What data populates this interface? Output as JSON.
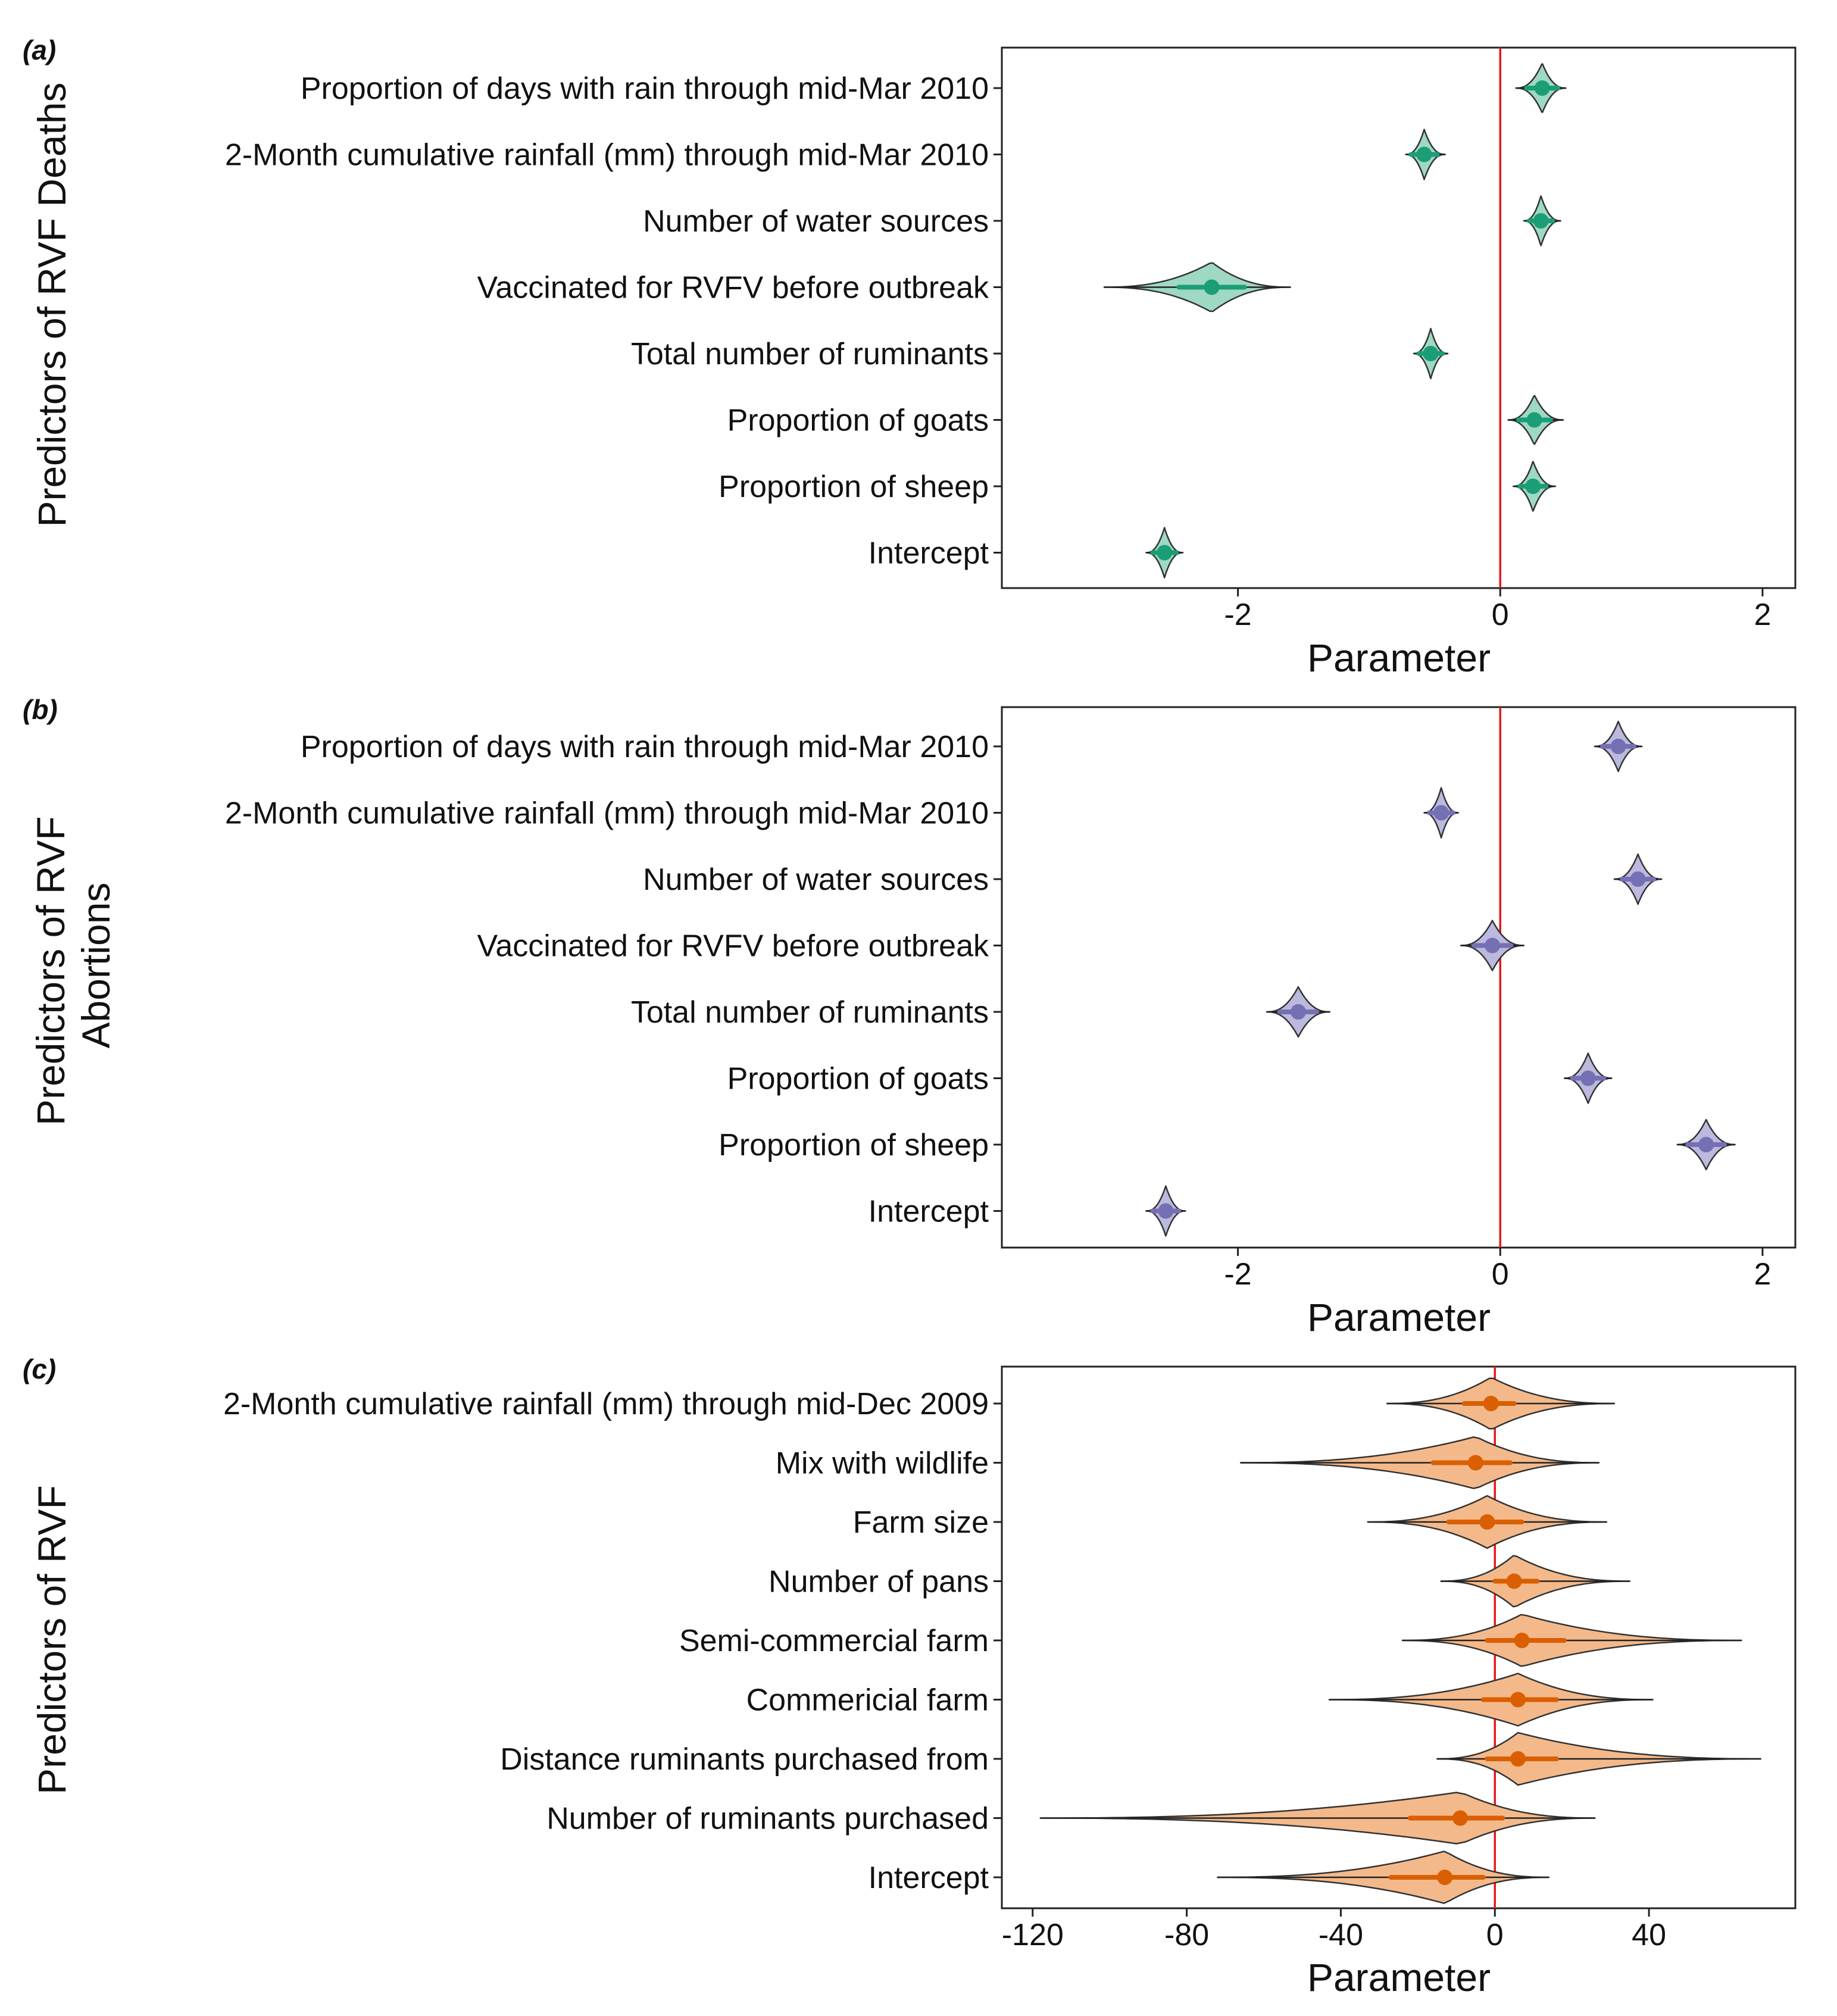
{
  "chart_data": [
    {
      "type": "violin",
      "panel": "(a)",
      "ylabel": "Predictors of RVF Deaths",
      "xlabel": "Parameter",
      "xlim": [
        -3.8,
        2.25
      ],
      "xticks": [
        -2,
        0,
        2
      ],
      "tick_labels": [
        "-2",
        "0",
        "2"
      ],
      "reference_line": 0,
      "fill": "#9fd8c3",
      "point_color": "#1b9e77",
      "categories": [
        "Proportion of days with rain through mid-Mar 2010",
        "2-Month cumulative rainfall (mm) through mid-Mar 2010",
        "Number of water sources",
        "Vaccinated for RVFV before outbreak",
        "Total number of ruminants",
        "Proportion of goats",
        "Proportion of sheep",
        "Intercept"
      ],
      "median": [
        0.32,
        -0.58,
        0.31,
        -2.2,
        -0.53,
        0.26,
        0.25,
        -2.56
      ],
      "ci_low": [
        0.2,
        -0.68,
        0.22,
        -2.45,
        -0.62,
        0.14,
        0.15,
        -2.65
      ],
      "ci_high": [
        0.44,
        -0.48,
        0.4,
        -1.95,
        -0.44,
        0.38,
        0.35,
        -2.47
      ],
      "min": [
        0.12,
        -0.72,
        0.18,
        -3.02,
        -0.66,
        0.06,
        0.1,
        -2.7
      ],
      "max": [
        0.5,
        -0.42,
        0.46,
        -1.6,
        -0.4,
        0.48,
        0.42,
        -2.42
      ]
    },
    {
      "type": "violin",
      "panel": "(b)",
      "ylabel": [
        "Predictors of RVF",
        "Abortions"
      ],
      "xlabel": "Parameter",
      "xlim": [
        -3.8,
        2.25
      ],
      "xticks": [
        -2,
        0,
        2
      ],
      "tick_labels": [
        "-2",
        "0",
        "2"
      ],
      "reference_line": 0,
      "fill": "#bcb9de",
      "point_color": "#7570b3",
      "categories": [
        "Proportion of days with rain through mid-Mar 2010",
        "2-Month cumulative rainfall (mm) through mid-Mar 2010",
        "Number of water sources",
        "Vaccinated for RVFV before outbreak",
        "Total number of ruminants",
        "Proportion of goats",
        "Proportion of sheep",
        "Intercept"
      ],
      "median": [
        0.9,
        -0.45,
        1.05,
        -0.06,
        -1.54,
        0.67,
        1.57,
        -2.55
      ],
      "ci_low": [
        0.78,
        -0.54,
        0.93,
        -0.2,
        -1.68,
        0.55,
        1.43,
        -2.65
      ],
      "ci_high": [
        1.02,
        -0.36,
        1.17,
        0.08,
        -1.4,
        0.79,
        1.71,
        -2.45
      ],
      "min": [
        0.72,
        -0.58,
        0.87,
        -0.3,
        -1.78,
        0.49,
        1.35,
        -2.7
      ],
      "max": [
        1.08,
        -0.32,
        1.23,
        0.18,
        -1.3,
        0.85,
        1.79,
        -2.4
      ]
    },
    {
      "type": "violin",
      "panel": "(c)",
      "ylabel": "Predictors of RVF",
      "xlabel": "Parameter",
      "xlim": [
        -128,
        78
      ],
      "xticks": [
        -120,
        -80,
        -40,
        0,
        40
      ],
      "tick_labels": [
        "-120",
        "-80",
        "-40",
        "0",
        "40"
      ],
      "reference_line": 0,
      "fill": "#f4b98a",
      "point_color": "#d95f02",
      "categories": [
        "2-Month cumulative rainfall (mm) through mid-Dec 2009",
        "Mix with wildlife",
        "Farm size",
        "Number of pans",
        "Semi-commercial farm",
        "Commericial farm",
        "Distance ruminants purchased from",
        "Number of ruminants purchased",
        "Intercept"
      ],
      "median": [
        -1,
        -5,
        -2,
        5,
        7,
        6,
        6,
        -9,
        -13
      ],
      "ci_low": [
        -8,
        -16,
        -12,
        0,
        -2,
        -3,
        -2,
        -22,
        -27
      ],
      "ci_high": [
        5,
        4,
        7,
        11,
        18,
        16,
        16,
        2,
        -3
      ],
      "min": [
        -28,
        -66,
        -33,
        -14,
        -24,
        -43,
        -15,
        -118,
        -72
      ],
      "max": [
        31,
        27,
        29,
        35,
        64,
        41,
        69,
        26,
        14
      ]
    }
  ]
}
